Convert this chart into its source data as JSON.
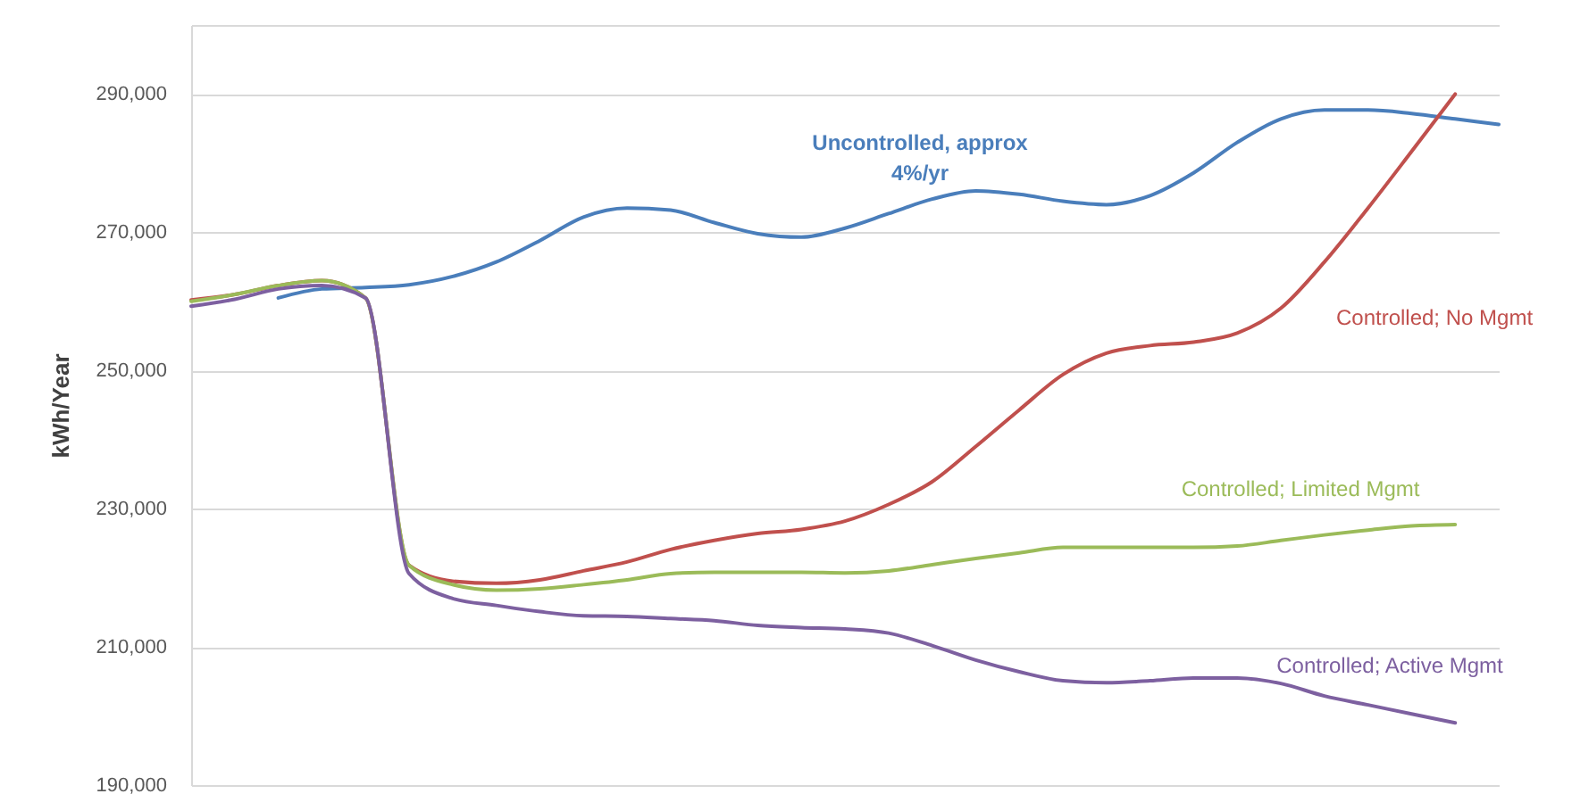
{
  "chart_data": {
    "type": "line",
    "ylabel": "kWh/Year",
    "categories": [
      null,
      null,
      null,
      null,
      null,
      null,
      null,
      null,
      null,
      null,
      null,
      null,
      null,
      null,
      null,
      null,
      null,
      null,
      null,
      null,
      null,
      null,
      null,
      null,
      null,
      null,
      null,
      null,
      null,
      null,
      null
    ],
    "ylim": [
      190000,
      300000
    ],
    "yticks": [
      {
        "value": 190000,
        "label": "190,000"
      },
      {
        "value": 210000,
        "label": "210,000"
      },
      {
        "value": 230000,
        "label": "230,000"
      },
      {
        "value": 250000,
        "label": "250,000"
      },
      {
        "value": 270000,
        "label": "270,000"
      },
      {
        "value": 290000,
        "label": "290,000"
      },
      {
        "value": 300000,
        "label": null
      }
    ],
    "grid": "y",
    "tick_labels": "y",
    "line_style": "solid",
    "marker": "none",
    "series": [
      {
        "name": "Uncontrolled, approx 4%/yr",
        "color": "#4a7ebb",
        "values": [
          null,
          null,
          260500,
          261800,
          262000,
          262400,
          263600,
          265700,
          268800,
          272200,
          273500,
          273200,
          271400,
          269800,
          269300,
          270600,
          272700,
          274800,
          276000,
          275500,
          274500,
          274000,
          275300,
          278600,
          283000,
          286400,
          287700,
          287700,
          287200,
          286400,
          285600
        ]
      },
      {
        "name": "Controlled; No Mgmt",
        "color": "#c0504d",
        "values": [
          260200,
          261000,
          262300,
          263000,
          260500,
          221800,
          219500,
          219200,
          219700,
          221000,
          222300,
          224100,
          225400,
          226400,
          227000,
          228200,
          230600,
          233900,
          239000,
          244300,
          249400,
          252500,
          253600,
          254100,
          255400,
          259000,
          265700,
          273500,
          281700,
          290000,
          null
        ]
      },
      {
        "name": "Controlled; Limited Mgmt",
        "color": "#9bbb59",
        "values": [
          260000,
          261000,
          262300,
          263000,
          260500,
          221800,
          219000,
          218200,
          218400,
          219000,
          219700,
          220600,
          220800,
          220800,
          220800,
          220700,
          221000,
          221900,
          222800,
          223600,
          224400,
          224400,
          224400,
          224400,
          224600,
          225400,
          226200,
          226900,
          227500,
          227700,
          null
        ]
      },
      {
        "name": "Controlled; Active Mgmt",
        "color": "#7d60a0",
        "values": [
          259300,
          260300,
          261800,
          262300,
          260500,
          220600,
          217000,
          216000,
          215100,
          214500,
          214400,
          214100,
          213800,
          213100,
          212800,
          212600,
          212000,
          210200,
          208100,
          206400,
          205100,
          204800,
          205100,
          205500,
          205500,
          204700,
          202900,
          201600,
          200300,
          199000,
          null
        ]
      }
    ]
  }
}
